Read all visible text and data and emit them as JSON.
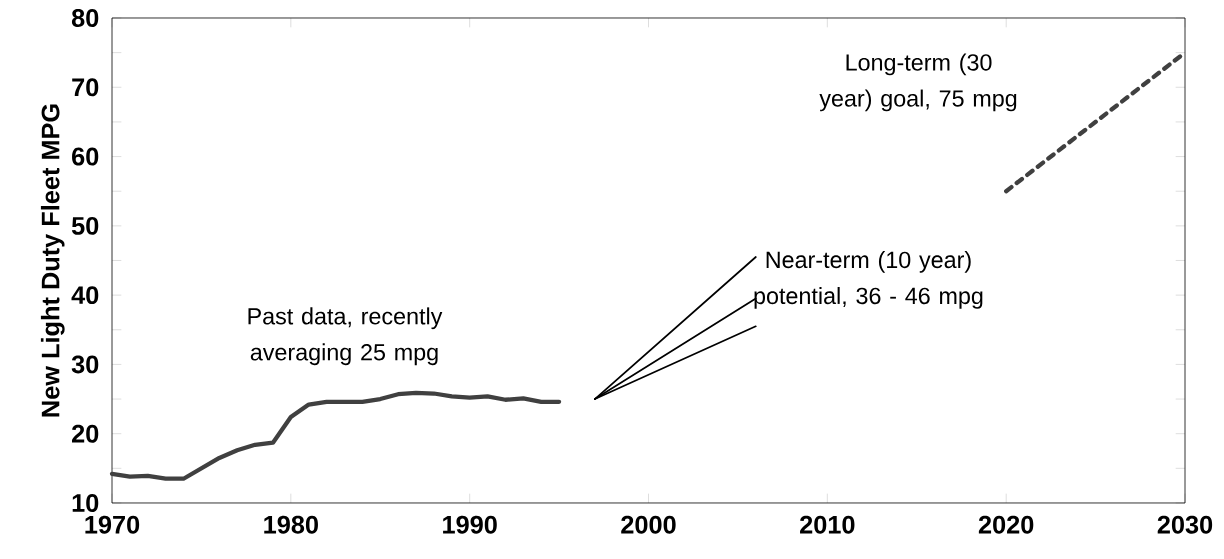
{
  "chart_data": {
    "type": "line",
    "ylabel": "New Light Duty Fleet MPG",
    "xlim": [
      1970,
      2030
    ],
    "ylim": [
      10,
      80
    ],
    "xticks": [
      1970,
      1980,
      1990,
      2000,
      2010,
      2020,
      2030
    ],
    "yticks": [
      10,
      20,
      30,
      40,
      50,
      60,
      70,
      80
    ],
    "series": [
      {
        "color": "#404040",
        "x": [
          1970,
          1971,
          1972,
          1973,
          1974,
          1975,
          1976,
          1977,
          1978,
          1979,
          1980,
          1981,
          1982,
          1983,
          1984,
          1985,
          1986,
          1987,
          1988,
          1989,
          1990,
          1991,
          1992,
          1993,
          1994,
          1995
        ],
        "values": [
          14.2,
          13.8,
          13.9,
          13.5,
          13.5,
          15.0,
          16.5,
          17.6,
          18.4,
          18.7,
          22.4,
          24.2,
          24.6,
          24.6,
          24.6,
          25.0,
          25.7,
          25.9,
          25.8,
          25.4,
          25.2,
          25.4,
          24.9,
          25.1,
          24.6,
          24.6
        ]
      },
      {
        "color": "#000000",
        "x": [
          1997,
          2006
        ],
        "values": [
          25,
          45.5
        ]
      },
      {
        "color": "#000000",
        "x": [
          1997,
          2006
        ],
        "values": [
          25,
          39.5
        ]
      },
      {
        "color": "#000000",
        "x": [
          1997,
          2006
        ],
        "values": [
          25,
          35.5
        ]
      },
      {
        "color": "#404040",
        "line_style": "dashed",
        "x": [
          2020,
          2030
        ],
        "values": [
          55,
          75
        ]
      }
    ],
    "annotations": [
      {
        "text": "Past data, recently averaging 25 mpg",
        "x": 1983,
        "y": 24.6
      },
      "Near-term (10 year) potential, 36 - 46 mpg",
      "Long-term (30 year) goal, 75 mpg"
    ]
  }
}
